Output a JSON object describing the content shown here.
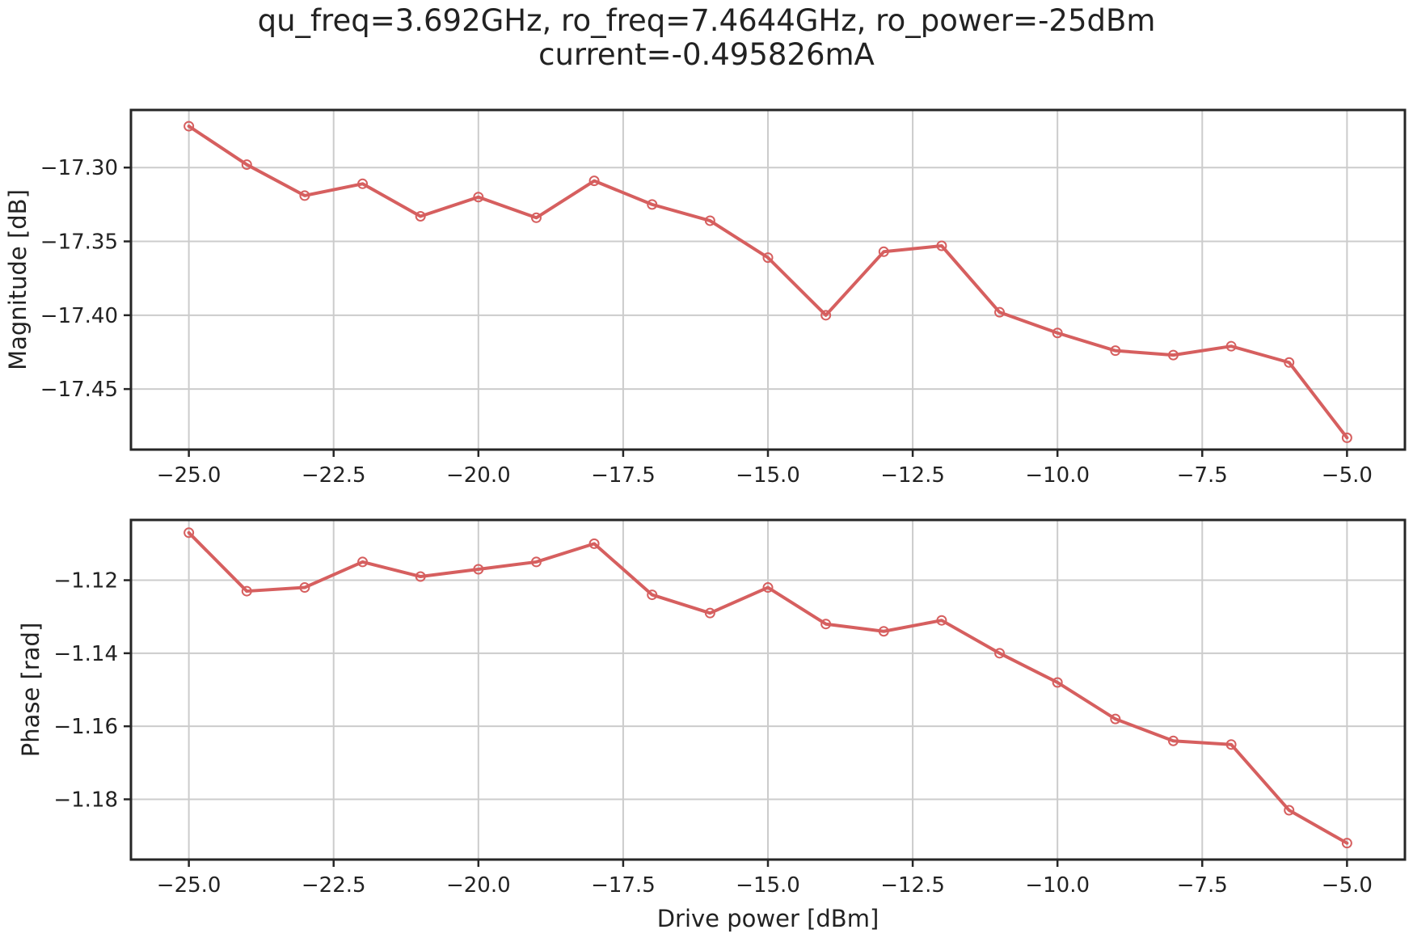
{
  "figure": {
    "title_line1": "qu_freq=3.692GHz, ro_freq=7.4644GHz, ro_power=-25dBm",
    "title_line2": "current=-0.495826mA"
  },
  "chart_data": [
    {
      "type": "line",
      "title": "",
      "xlabel": "",
      "ylabel": "Magnitude [dB]",
      "xlim": [
        -26.0,
        -4.0
      ],
      "ylim": [
        -17.491,
        -17.261
      ],
      "grid": true,
      "color": "#d65f5f",
      "marker": "open-circle",
      "xticks": [
        -25.0,
        -22.5,
        -20.0,
        -17.5,
        -15.0,
        -12.5,
        -10.0,
        -7.5,
        -5.0
      ],
      "xtick_labels": [
        "−25.0",
        "−22.5",
        "−20.0",
        "−17.5",
        "−15.0",
        "−12.5",
        "−10.0",
        "−7.5",
        "−5.0"
      ],
      "yticks": [
        -17.3,
        -17.35,
        -17.4,
        -17.45
      ],
      "ytick_labels": [
        "−17.30",
        "−17.35",
        "−17.40",
        "−17.45"
      ],
      "x": [
        -25,
        -24,
        -23,
        -22,
        -21,
        -20,
        -19,
        -18,
        -17,
        -16,
        -15,
        -14,
        -13,
        -12,
        -11,
        -10,
        -9,
        -8,
        -7,
        -6,
        -5
      ],
      "y": [
        -17.272,
        -17.298,
        -17.319,
        -17.311,
        -17.333,
        -17.32,
        -17.334,
        -17.309,
        -17.325,
        -17.336,
        -17.361,
        -17.4,
        -17.357,
        -17.353,
        -17.398,
        -17.412,
        -17.424,
        -17.427,
        -17.421,
        -17.432,
        -17.483
      ]
    },
    {
      "type": "line",
      "title": "",
      "xlabel": "Drive power [dBm]",
      "ylabel": "Phase [rad]",
      "xlim": [
        -26.0,
        -4.0
      ],
      "ylim": [
        -1.1965,
        -1.1035
      ],
      "grid": true,
      "color": "#d65f5f",
      "marker": "open-circle",
      "xticks": [
        -25.0,
        -22.5,
        -20.0,
        -17.5,
        -15.0,
        -12.5,
        -10.0,
        -7.5,
        -5.0
      ],
      "xtick_labels": [
        "−25.0",
        "−22.5",
        "−20.0",
        "−17.5",
        "−15.0",
        "−12.5",
        "−10.0",
        "−7.5",
        "−5.0"
      ],
      "yticks": [
        -1.12,
        -1.14,
        -1.16,
        -1.18
      ],
      "ytick_labels": [
        "−1.12",
        "−1.14",
        "−1.16",
        "−1.18"
      ],
      "x": [
        -25,
        -24,
        -23,
        -22,
        -21,
        -20,
        -19,
        -18,
        -17,
        -16,
        -15,
        -14,
        -13,
        -12,
        -11,
        -10,
        -9,
        -8,
        -7,
        -6,
        -5
      ],
      "y": [
        -1.107,
        -1.123,
        -1.122,
        -1.115,
        -1.119,
        -1.117,
        -1.115,
        -1.11,
        -1.124,
        -1.129,
        -1.122,
        -1.132,
        -1.134,
        -1.131,
        -1.14,
        -1.148,
        -1.158,
        -1.164,
        -1.165,
        -1.183,
        -1.192
      ]
    }
  ]
}
